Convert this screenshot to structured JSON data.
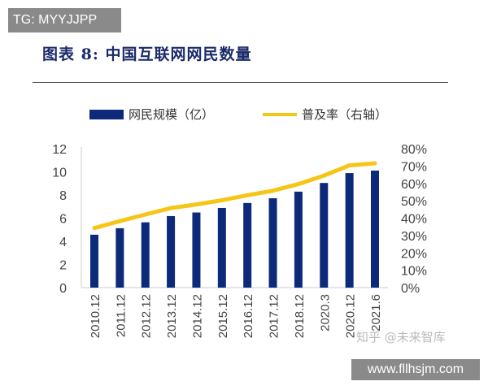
{
  "watermark_top": "TG: MYYJJPP",
  "watermark_bottom": "www.fllhsjm.com",
  "watermark_zhihu": "知乎 @未来智库",
  "colors": {
    "bar": "#0d2a7a",
    "line": "#f5c518"
  },
  "chart_data": {
    "type": "bar+line",
    "title": "图表 8: 中国互联网网民数量",
    "categories": [
      "2010.12",
      "2011.12",
      "2012.12",
      "2013.12",
      "2014.12",
      "2015.12",
      "2016.12",
      "2017.12",
      "2018.12",
      "2020.3",
      "2020.12",
      "2021.6"
    ],
    "series": [
      {
        "name": "网民规模（亿）",
        "type": "bar",
        "axis": "left",
        "values": [
          4.57,
          5.13,
          5.64,
          6.18,
          6.49,
          6.88,
          7.31,
          7.72,
          8.29,
          9.04,
          9.89,
          10.11
        ]
      },
      {
        "name": "普及率（右轴）",
        "type": "line",
        "axis": "right",
        "values": [
          34.3,
          38.3,
          42.1,
          45.8,
          47.9,
          50.3,
          53.2,
          55.8,
          59.6,
          64.5,
          70.4,
          71.6
        ]
      }
    ],
    "left_axis": {
      "range": [
        0,
        12
      ],
      "ticks": [
        "0",
        "2",
        "4",
        "6",
        "8",
        "10",
        "12"
      ]
    },
    "right_axis": {
      "range": [
        0,
        80
      ],
      "ticks": [
        "0%",
        "10%",
        "20%",
        "30%",
        "40%",
        "50%",
        "60%",
        "70%",
        "80%"
      ]
    },
    "grid": false,
    "legend": "top"
  }
}
